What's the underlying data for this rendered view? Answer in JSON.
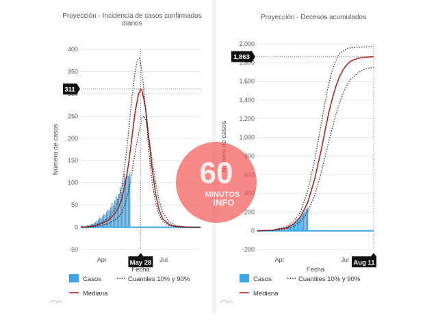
{
  "chart_data": [
    {
      "type": "area",
      "title": "Proyección - Incidencia de casos confirmados diarios",
      "title_lines": [
        "Proyección - Incidencia de casos confirmados",
        "diarios"
      ],
      "xlabel": "Fecha",
      "ylabel": "Número de casos",
      "ylim": [
        -50,
        400
      ],
      "yticks": [
        "400",
        "350",
        "300",
        "250",
        "200",
        "150",
        "100",
        "50",
        "0",
        "-50"
      ],
      "ytick_values": [
        400,
        350,
        300,
        250,
        200,
        150,
        100,
        50,
        0,
        -50
      ],
      "xticks": [
        "Apr",
        "Jul"
      ],
      "xtick_days": [
        31,
        122
      ],
      "xlim_days": [
        0,
        176
      ],
      "highlight_x_label": "May 28",
      "highlight_x_day": 88,
      "highlight_y_label": "311",
      "highlight_y_value": 311,
      "series": [
        {
          "name": "Casos",
          "kind": "bars",
          "x": [
            2,
            5,
            8,
            10,
            12,
            14,
            16,
            18,
            20,
            22,
            24,
            26,
            28,
            30,
            32,
            34,
            36,
            38,
            40,
            42,
            44,
            46,
            48,
            50,
            52,
            54,
            56,
            58,
            60,
            62,
            64,
            66,
            68,
            70,
            72
          ],
          "values": [
            4,
            2,
            3,
            5,
            4,
            6,
            7,
            8,
            10,
            12,
            15,
            18,
            22,
            20,
            25,
            30,
            28,
            35,
            40,
            38,
            45,
            55,
            48,
            60,
            70,
            65,
            75,
            90,
            80,
            100,
            120,
            105,
            125,
            115,
            122
          ]
        },
        {
          "name": "Mediana",
          "kind": "line",
          "color": "#b22222",
          "x": [
            0,
            10,
            20,
            30,
            40,
            50,
            55,
            60,
            65,
            70,
            75,
            80,
            85,
            88,
            90,
            95,
            100,
            105,
            110,
            115,
            120,
            130,
            140,
            150,
            160,
            176
          ],
          "values": [
            0,
            1,
            3,
            8,
            15,
            30,
            42,
            62,
            95,
            140,
            200,
            260,
            300,
            311,
            308,
            270,
            200,
            130,
            75,
            40,
            20,
            6,
            2,
            1,
            0,
            0
          ]
        },
        {
          "name": "Cuantiles 10% y 90%",
          "kind": "line-upper",
          "color": "#222",
          "x": [
            0,
            10,
            20,
            30,
            40,
            50,
            55,
            60,
            65,
            70,
            75,
            80,
            83,
            86,
            88,
            92,
            96,
            100,
            105,
            110,
            115,
            120,
            130,
            140,
            150,
            160,
            176
          ],
          "values": [
            0,
            1,
            4,
            10,
            20,
            40,
            58,
            88,
            140,
            210,
            290,
            350,
            375,
            380,
            370,
            320,
            250,
            170,
            100,
            55,
            28,
            14,
            4,
            1,
            0,
            0,
            0
          ]
        },
        {
          "name": "Cuantiles 10% y 90%",
          "kind": "line-lower",
          "color": "#222",
          "x": [
            0,
            10,
            20,
            30,
            40,
            50,
            55,
            60,
            65,
            70,
            75,
            80,
            85,
            90,
            93,
            96,
            100,
            105,
            110,
            115,
            120,
            130,
            140,
            150,
            160,
            176
          ],
          "values": [
            0,
            0,
            1,
            4,
            8,
            16,
            22,
            32,
            50,
            80,
            120,
            170,
            210,
            245,
            250,
            240,
            205,
            150,
            100,
            62,
            35,
            12,
            4,
            1,
            0,
            0
          ]
        }
      ],
      "legend": [
        "Casos",
        "Cuantiles 10% y 90%",
        "Mediana"
      ],
      "colors": {
        "bars": "#3aa6e8",
        "median": "#b22222",
        "quantiles": "#222222",
        "flag": "#111111"
      }
    },
    {
      "type": "area",
      "title": "Proyección - Decesos acumulados",
      "title_lines": [
        "Proyección - Decesos acumulados"
      ],
      "xlabel": "Fecha",
      "ylabel": "Número de casos",
      "ylim": [
        -200,
        2000
      ],
      "yticks": [
        "2,000",
        "1,800",
        "1,600",
        "1,400",
        "1,200",
        "1,000",
        "800",
        "600",
        "400",
        "200",
        "0",
        "-200"
      ],
      "ytick_values": [
        2000,
        1800,
        1600,
        1400,
        1200,
        1000,
        800,
        600,
        400,
        200,
        0,
        -200
      ],
      "xticks": [
        "Apr",
        "Jul"
      ],
      "xtick_days": [
        31,
        122
      ],
      "xlim_days": [
        0,
        162
      ],
      "highlight_x_label": "Aug 11",
      "highlight_x_day": 162,
      "highlight_y_label": "1,863",
      "highlight_y_value": 1863,
      "series": [
        {
          "name": "Casos",
          "kind": "bars",
          "x": [
            10,
            14,
            18,
            22,
            26,
            30,
            34,
            38,
            42,
            44,
            46,
            48,
            50,
            52,
            54,
            56,
            58,
            60,
            62,
            64,
            66,
            68,
            70
          ],
          "values": [
            0,
            1,
            2,
            4,
            6,
            10,
            16,
            24,
            36,
            42,
            52,
            60,
            72,
            85,
            100,
            115,
            135,
            150,
            170,
            190,
            210,
            235,
            250
          ]
        },
        {
          "name": "Mediana",
          "kind": "line",
          "color": "#b22222",
          "x": [
            0,
            20,
            40,
            50,
            60,
            70,
            80,
            90,
            95,
            100,
            105,
            110,
            115,
            120,
            125,
            130,
            140,
            150,
            162
          ],
          "values": [
            0,
            5,
            30,
            70,
            150,
            300,
            560,
            900,
            1100,
            1280,
            1430,
            1560,
            1660,
            1730,
            1780,
            1815,
            1845,
            1858,
            1863
          ]
        },
        {
          "name": "Cuantiles 10% y 90%",
          "kind": "line-upper",
          "color": "#222",
          "x": [
            0,
            20,
            40,
            50,
            60,
            70,
            80,
            88,
            93,
            98,
            103,
            108,
            113,
            118,
            125,
            132,
            142,
            152,
            162
          ],
          "values": [
            0,
            6,
            40,
            95,
            200,
            420,
            760,
            1100,
            1320,
            1520,
            1680,
            1800,
            1880,
            1920,
            1950,
            1960,
            1965,
            1968,
            1970
          ]
        },
        {
          "name": "Cuantiles 10% y 90%",
          "kind": "line-lower",
          "color": "#222",
          "x": [
            0,
            20,
            40,
            50,
            60,
            70,
            80,
            90,
            100,
            105,
            110,
            115,
            120,
            125,
            130,
            140,
            150,
            162
          ],
          "values": [
            0,
            3,
            20,
            45,
            100,
            200,
            380,
            650,
            970,
            1120,
            1260,
            1380,
            1480,
            1560,
            1620,
            1690,
            1730,
            1750
          ]
        }
      ],
      "legend": [
        "Casos",
        "Cuantiles 10% y 90%",
        "Mediana"
      ],
      "colors": {
        "bars": "#3aa6e8",
        "median": "#b22222",
        "quantiles": "#222222",
        "flag": "#111111"
      }
    }
  ],
  "watermark": {
    "big": "60",
    "small_lines": [
      "MINUTOS",
      "INFO"
    ],
    "color": "#f45a5a"
  }
}
